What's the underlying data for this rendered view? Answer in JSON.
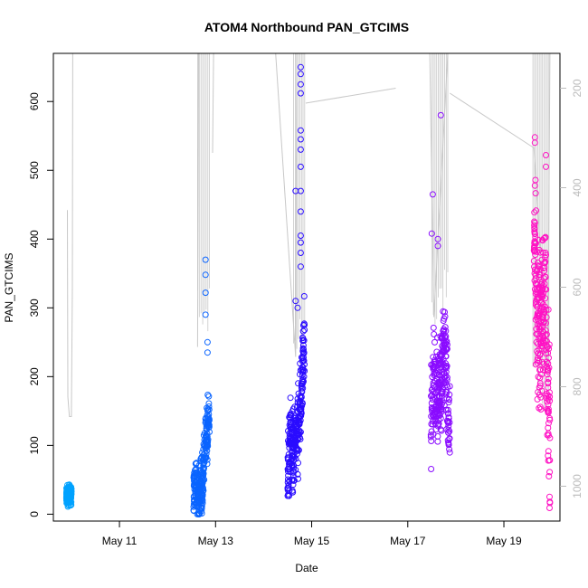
{
  "chart_data": {
    "type": "scatter",
    "title": "ATOM4 Northbound PAN_GTCIMS",
    "xlabel": "Date",
    "ylabel": "PAN_GTCIMS",
    "x_ticks": [
      "May 11",
      "May 13",
      "May 15",
      "May 17",
      "May 19"
    ],
    "y_ticks": [
      0,
      100,
      200,
      300,
      400,
      500,
      600
    ],
    "y2_ticks": [
      200,
      400,
      600,
      800,
      1000
    ],
    "xlim": [
      "2016-05-09T15:00",
      "2016-05-20T04:00"
    ],
    "ylim": [
      -10,
      670
    ],
    "y2lim": [
      1070,
      130
    ],
    "y2_reversed": true,
    "grid": false,
    "legend": "none",
    "colors": {
      "axis": "#000000",
      "secondary_axis": "#bbbbbb",
      "altitude_line": "#c8c8c8"
    },
    "series": [
      {
        "color": "#00a2ff",
        "clusters": [
          {
            "x_start": "2016-05-09T21:30",
            "x_end": "2016-05-10T00:00",
            "profile": [
              [
                0,
                25
              ],
              [
                0.2,
                30
              ],
              [
                0.4,
                22
              ],
              [
                0.6,
                35
              ],
              [
                0.8,
                26
              ],
              [
                1,
                28
              ]
            ],
            "spread": 12,
            "outliers": []
          }
        ]
      },
      {
        "color": "#0a64ff",
        "clusters": [
          {
            "x_start": "2016-05-12T13:00",
            "x_end": "2016-05-12T21:00",
            "profile": [
              [
                0,
                30
              ],
              [
                0.15,
                45
              ],
              [
                0.35,
                25
              ],
              [
                0.5,
                35
              ],
              [
                0.6,
                55
              ],
              [
                0.7,
                100
              ],
              [
                0.8,
                120
              ],
              [
                0.9,
                130
              ],
              [
                1,
                140
              ]
            ],
            "spread": 40,
            "outliers": [
              [
                "2016-05-12T19:00",
                370
              ],
              [
                "2016-05-12T19:00",
                348
              ],
              [
                "2016-05-12T19:00",
                322
              ],
              [
                "2016-05-12T19:00",
                290
              ],
              [
                "2016-05-12T20:00",
                250
              ],
              [
                "2016-05-12T20:00",
                235
              ]
            ]
          }
        ]
      },
      {
        "color": "#2a0cff",
        "clusters": [
          {
            "x_start": "2016-05-14T12:00",
            "x_end": "2016-05-14T20:30",
            "profile": [
              [
                0,
                60
              ],
              [
                0.15,
                110
              ],
              [
                0.3,
                90
              ],
              [
                0.45,
                100
              ],
              [
                0.6,
                120
              ],
              [
                0.75,
                160
              ],
              [
                0.85,
                200
              ],
              [
                1,
                260
              ]
            ],
            "spread": 55,
            "outliers": [
              [
                "2016-05-14T16:00",
                470
              ],
              [
                "2016-05-14T16:00",
                310
              ],
              [
                "2016-05-14T17:00",
                300
              ],
              [
                "2016-05-14T18:30",
                650
              ],
              [
                "2016-05-14T18:30",
                640
              ],
              [
                "2016-05-14T18:30",
                625
              ],
              [
                "2016-05-14T18:30",
                612
              ],
              [
                "2016-05-14T18:30",
                558
              ],
              [
                "2016-05-14T18:30",
                545
              ],
              [
                "2016-05-14T18:30",
                530
              ],
              [
                "2016-05-14T18:30",
                505
              ],
              [
                "2016-05-14T18:30",
                470
              ],
              [
                "2016-05-14T18:30",
                440
              ],
              [
                "2016-05-14T18:30",
                405
              ],
              [
                "2016-05-14T18:30",
                395
              ],
              [
                "2016-05-14T18:30",
                380
              ],
              [
                "2016-05-14T18:30",
                360
              ]
            ]
          }
        ]
      },
      {
        "color": "#8a0cff",
        "clusters": [
          {
            "x_start": "2016-05-17T11:30",
            "x_end": "2016-05-17T21:00",
            "profile": [
              [
                0,
                120
              ],
              [
                0.15,
                200
              ],
              [
                0.3,
                160
              ],
              [
                0.45,
                180
              ],
              [
                0.6,
                210
              ],
              [
                0.75,
                240
              ],
              [
                0.85,
                190
              ],
              [
                1,
                120
              ]
            ],
            "spread": 70,
            "outliers": [
              [
                "2016-05-17T12:30",
                465
              ],
              [
                "2016-05-17T12:00",
                408
              ],
              [
                "2016-05-17T16:30",
                580
              ],
              [
                "2016-05-17T15:00",
                400
              ],
              [
                "2016-05-17T15:00",
                390
              ]
            ]
          }
        ]
      },
      {
        "color": "#ff12c4",
        "clusters": [
          {
            "x_start": "2016-05-19T15:00",
            "x_end": "2016-05-19T23:00",
            "profile": [
              [
                0,
                400
              ],
              [
                0.12,
                350
              ],
              [
                0.25,
                280
              ],
              [
                0.4,
                260
              ],
              [
                0.55,
                300
              ],
              [
                0.7,
                330
              ],
              [
                0.85,
                200
              ],
              [
                1,
                90
              ]
            ],
            "spread": 110,
            "outliers": [
              [
                "2016-05-19T15:30",
                548
              ],
              [
                "2016-05-19T15:30",
                540
              ],
              [
                "2016-05-19T21:00",
                522
              ],
              [
                "2016-05-19T21:00",
                505
              ]
            ]
          }
        ]
      }
    ],
    "altitude_segments": [
      [
        [
          "2016-05-09T22:00",
          445
        ],
        [
          "2016-05-09T22:15",
          820
        ],
        [
          "2016-05-09T23:00",
          860
        ],
        [
          "2016-05-10T00:00",
          860
        ],
        [
          "2016-05-10T00:30",
          600
        ],
        [
          "2016-05-10T00:40",
          130
        ]
      ],
      [
        [
          "2016-05-12T15:00",
          720
        ],
        [
          "2016-05-12T15:30",
          130
        ]
      ],
      [
        [
          "2016-05-12T22:30",
          330
        ],
        [
          "2016-05-12T23:00",
          130
        ]
      ],
      [
        [
          "2016-05-13T17:00",
          130
        ],
        [
          "2016-05-14T06:00",
          130
        ],
        [
          "2016-05-14T16:00",
          740
        ],
        [
          "2016-05-14T16:30",
          130
        ]
      ],
      [
        [
          "2016-05-14T21:00",
          230
        ],
        [
          "2016-05-16T18:00",
          200
        ]
      ],
      [
        [
          "2016-05-16T18:00",
          130
        ],
        [
          "2016-05-17T11:00",
          130
        ],
        [
          "2016-05-17T13:00",
          660
        ],
        [
          "2016-05-17T20:00",
          130
        ]
      ],
      [
        [
          "2016-05-17T21:00",
          210
        ],
        [
          "2016-05-19T15:00",
          320
        ],
        [
          "2016-05-19T22:00",
          760
        ],
        [
          "2016-05-19T23:00",
          130
        ]
      ]
    ],
    "altitude_dense_windows": [
      {
        "x_start": "2016-05-12T15:00",
        "x_end": "2016-05-12T21:00",
        "y_low": 720,
        "y_high": 130
      },
      {
        "x_start": "2016-05-14T15:00",
        "x_end": "2016-05-14T20:30",
        "y_low": 760,
        "y_high": 130
      },
      {
        "x_start": "2016-05-17T12:00",
        "x_end": "2016-05-17T20:00",
        "y_low": 680,
        "y_high": 130
      },
      {
        "x_start": "2016-05-19T14:30",
        "x_end": "2016-05-19T22:30",
        "y_low": 860,
        "y_high": 130
      }
    ]
  }
}
